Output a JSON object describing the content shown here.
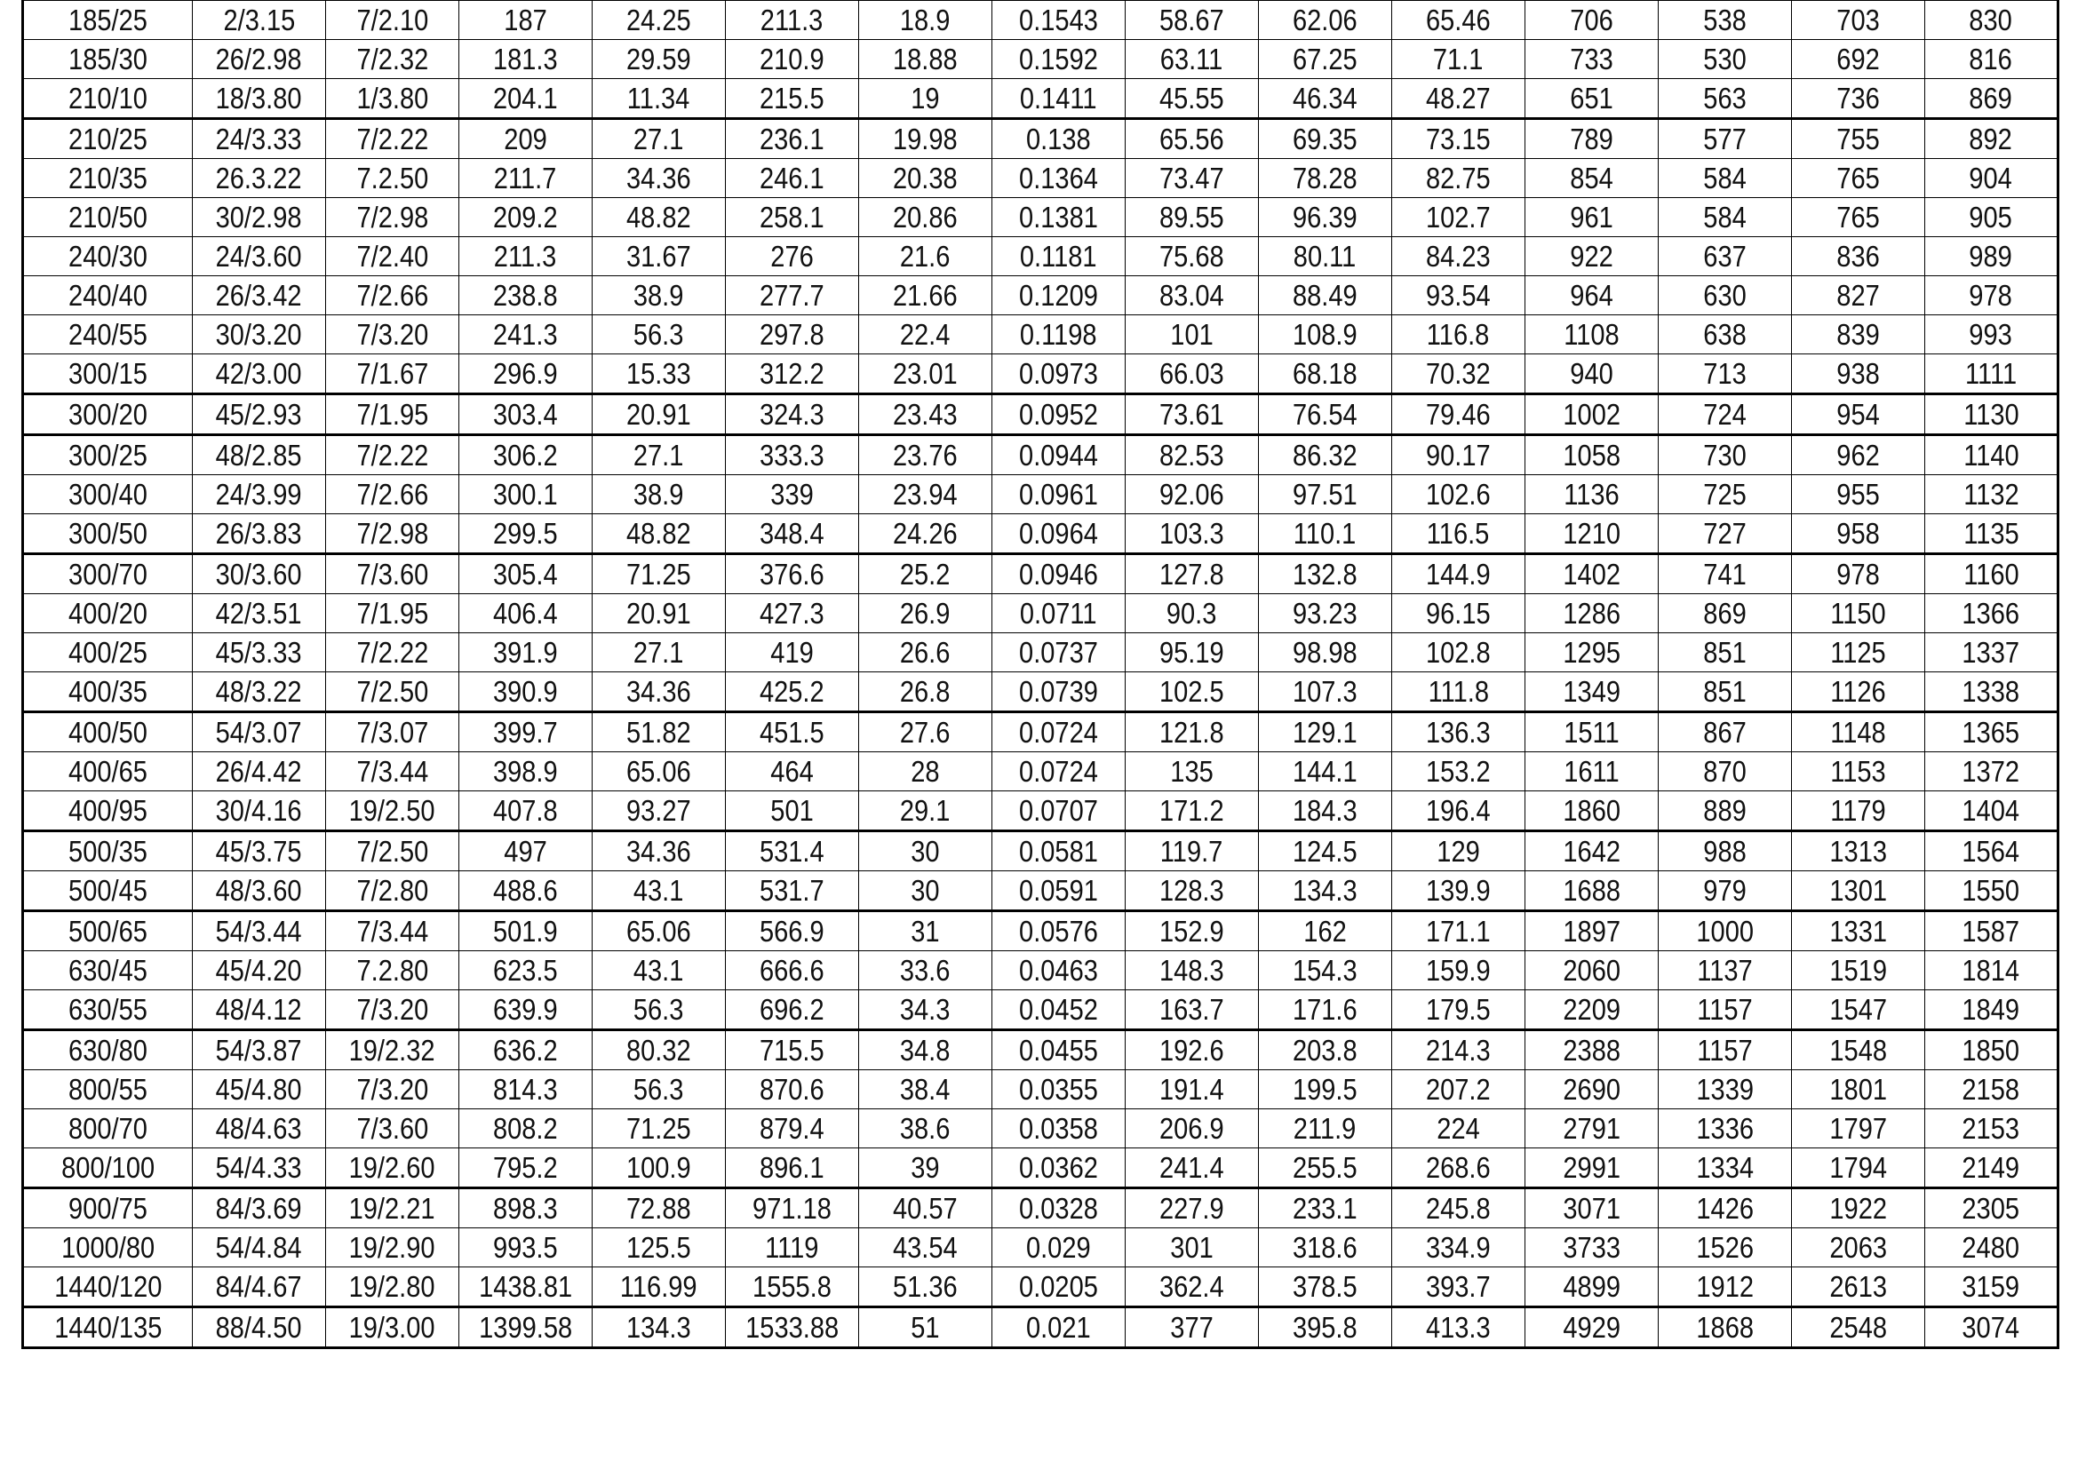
{
  "table": {
    "rows": [
      [
        "185/25",
        "2/3.15",
        "7/2.10",
        "187",
        "24.25",
        "211.3",
        "18.9",
        "0.1543",
        "58.67",
        "62.06",
        "65.46",
        "706",
        "538",
        "703",
        "830"
      ],
      [
        "185/30",
        "26/2.98",
        "7/2.32",
        "181.3",
        "29.59",
        "210.9",
        "18.88",
        "0.1592",
        "63.11",
        "67.25",
        "71.1",
        "733",
        "530",
        "692",
        "816"
      ],
      [
        "210/10",
        "18/3.80",
        "1/3.80",
        "204.1",
        "11.34",
        "215.5",
        "19",
        "0.1411",
        "45.55",
        "46.34",
        "48.27",
        "651",
        "563",
        "736",
        "869"
      ],
      [
        "210/25",
        "24/3.33",
        "7/2.22",
        "209",
        "27.1",
        "236.1",
        "19.98",
        "0.138",
        "65.56",
        "69.35",
        "73.15",
        "789",
        "577",
        "755",
        "892"
      ],
      [
        "210/35",
        "26.3.22",
        "7.2.50",
        "211.7",
        "34.36",
        "246.1",
        "20.38",
        "0.1364",
        "73.47",
        "78.28",
        "82.75",
        "854",
        "584",
        "765",
        "904"
      ],
      [
        "210/50",
        "30/2.98",
        "7/2.98",
        "209.2",
        "48.82",
        "258.1",
        "20.86",
        "0.1381",
        "89.55",
        "96.39",
        "102.7",
        "961",
        "584",
        "765",
        "905"
      ],
      [
        "240/30",
        "24/3.60",
        "7/2.40",
        "211.3",
        "31.67",
        "276",
        "21.6",
        "0.1181",
        "75.68",
        "80.11",
        "84.23",
        "922",
        "637",
        "836",
        "989"
      ],
      [
        "240/40",
        "26/3.42",
        "7/2.66",
        "238.8",
        "38.9",
        "277.7",
        "21.66",
        "0.1209",
        "83.04",
        "88.49",
        "93.54",
        "964",
        "630",
        "827",
        "978"
      ],
      [
        "240/55",
        "30/3.20",
        "7/3.20",
        "241.3",
        "56.3",
        "297.8",
        "22.4",
        "0.1198",
        "101",
        "108.9",
        "116.8",
        "1108",
        "638",
        "839",
        "993"
      ],
      [
        "300/15",
        "42/3.00",
        "7/1.67",
        "296.9",
        "15.33",
        "312.2",
        "23.01",
        "0.0973",
        "66.03",
        "68.18",
        "70.32",
        "940",
        "713",
        "938",
        "1111"
      ],
      [
        "300/20",
        "45/2.93",
        "7/1.95",
        "303.4",
        "20.91",
        "324.3",
        "23.43",
        "0.0952",
        "73.61",
        "76.54",
        "79.46",
        "1002",
        "724",
        "954",
        "1130"
      ],
      [
        "300/25",
        "48/2.85",
        "7/2.22",
        "306.2",
        "27.1",
        "333.3",
        "23.76",
        "0.0944",
        "82.53",
        "86.32",
        "90.17",
        "1058",
        "730",
        "962",
        "1140"
      ],
      [
        "300/40",
        "24/3.99",
        "7/2.66",
        "300.1",
        "38.9",
        "339",
        "23.94",
        "0.0961",
        "92.06",
        "97.51",
        "102.6",
        "1136",
        "725",
        "955",
        "1132"
      ],
      [
        "300/50",
        "26/3.83",
        "7/2.98",
        "299.5",
        "48.82",
        "348.4",
        "24.26",
        "0.0964",
        "103.3",
        "110.1",
        "116.5",
        "1210",
        "727",
        "958",
        "1135"
      ],
      [
        "300/70",
        "30/3.60",
        "7/3.60",
        "305.4",
        "71.25",
        "376.6",
        "25.2",
        "0.0946",
        "127.8",
        "132.8",
        "144.9",
        "1402",
        "741",
        "978",
        "1160"
      ],
      [
        "400/20",
        "42/3.51",
        "7/1.95",
        "406.4",
        "20.91",
        "427.3",
        "26.9",
        "0.0711",
        "90.3",
        "93.23",
        "96.15",
        "1286",
        "869",
        "1150",
        "1366"
      ],
      [
        "400/25",
        "45/3.33",
        "7/2.22",
        "391.9",
        "27.1",
        "419",
        "26.6",
        "0.0737",
        "95.19",
        "98.98",
        "102.8",
        "1295",
        "851",
        "1125",
        "1337"
      ],
      [
        "400/35",
        "48/3.22",
        "7/2.50",
        "390.9",
        "34.36",
        "425.2",
        "26.8",
        "0.0739",
        "102.5",
        "107.3",
        "111.8",
        "1349",
        "851",
        "1126",
        "1338"
      ],
      [
        "400/50",
        "54/3.07",
        "7/3.07",
        "399.7",
        "51.82",
        "451.5",
        "27.6",
        "0.0724",
        "121.8",
        "129.1",
        "136.3",
        "1511",
        "867",
        "1148",
        "1365"
      ],
      [
        "400/65",
        "26/4.42",
        "7/3.44",
        "398.9",
        "65.06",
        "464",
        "28",
        "0.0724",
        "135",
        "144.1",
        "153.2",
        "1611",
        "870",
        "1153",
        "1372"
      ],
      [
        "400/95",
        "30/4.16",
        "19/2.50",
        "407.8",
        "93.27",
        "501",
        "29.1",
        "0.0707",
        "171.2",
        "184.3",
        "196.4",
        "1860",
        "889",
        "1179",
        "1404"
      ],
      [
        "500/35",
        "45/3.75",
        "7/2.50",
        "497",
        "34.36",
        "531.4",
        "30",
        "0.0581",
        "119.7",
        "124.5",
        "129",
        "1642",
        "988",
        "1313",
        "1564"
      ],
      [
        "500/45",
        "48/3.60",
        "7/2.80",
        "488.6",
        "43.1",
        "531.7",
        "30",
        "0.0591",
        "128.3",
        "134.3",
        "139.9",
        "1688",
        "979",
        "1301",
        "1550"
      ],
      [
        "500/65",
        "54/3.44",
        "7/3.44",
        "501.9",
        "65.06",
        "566.9",
        "31",
        "0.0576",
        "152.9",
        "162",
        "171.1",
        "1897",
        "1000",
        "1331",
        "1587"
      ],
      [
        "630/45",
        "45/4.20",
        "7.2.80",
        "623.5",
        "43.1",
        "666.6",
        "33.6",
        "0.0463",
        "148.3",
        "154.3",
        "159.9",
        "2060",
        "1137",
        "1519",
        "1814"
      ],
      [
        "630/55",
        "48/4.12",
        "7/3.20",
        "639.9",
        "56.3",
        "696.2",
        "34.3",
        "0.0452",
        "163.7",
        "171.6",
        "179.5",
        "2209",
        "1157",
        "1547",
        "1849"
      ],
      [
        "630/80",
        "54/3.87",
        "19/2.32",
        "636.2",
        "80.32",
        "715.5",
        "34.8",
        "0.0455",
        "192.6",
        "203.8",
        "214.3",
        "2388",
        "1157",
        "1548",
        "1850"
      ],
      [
        "800/55",
        "45/4.80",
        "7/3.20",
        "814.3",
        "56.3",
        "870.6",
        "38.4",
        "0.0355",
        "191.4",
        "199.5",
        "207.2",
        "2690",
        "1339",
        "1801",
        "2158"
      ],
      [
        "800/70",
        "48/4.63",
        "7/3.60",
        "808.2",
        "71.25",
        "879.4",
        "38.6",
        "0.0358",
        "206.9",
        "211.9",
        "224",
        "2791",
        "1336",
        "1797",
        "2153"
      ],
      [
        "800/100",
        "54/4.33",
        "19/2.60",
        "795.2",
        "100.9",
        "896.1",
        "39",
        "0.0362",
        "241.4",
        "255.5",
        "268.6",
        "2991",
        "1334",
        "1794",
        "2149"
      ],
      [
        "900/75",
        "84/3.69",
        "19/2.21",
        "898.3",
        "72.88",
        "971.18",
        "40.57",
        "0.0328",
        "227.9",
        "233.1",
        "245.8",
        "3071",
        "1426",
        "1922",
        "2305"
      ],
      [
        "1000/80",
        "54/4.84",
        "19/2.90",
        "993.5",
        "125.5",
        "1119",
        "43.54",
        "0.029",
        "301",
        "318.6",
        "334.9",
        "3733",
        "1526",
        "2063",
        "2480"
      ],
      [
        "1440/120",
        "84/4.67",
        "19/2.80",
        "1438.81",
        "116.99",
        "1555.8",
        "51.36",
        "0.0205",
        "362.4",
        "378.5",
        "393.7",
        "4899",
        "1912",
        "2613",
        "3159"
      ],
      [
        "1440/135",
        "88/4.50",
        "19/3.00",
        "1399.58",
        "134.3",
        "1533.88",
        "51",
        "0.021",
        "377",
        "395.8",
        "413.3",
        "4929",
        "1868",
        "2548",
        "3074"
      ]
    ]
  }
}
